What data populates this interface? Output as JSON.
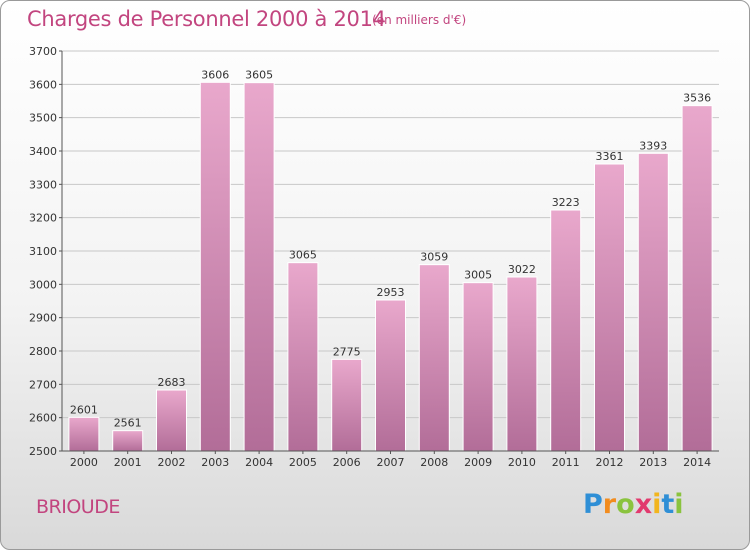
{
  "header": {
    "title": "Charges de Personnel 2000 à 2014",
    "subtitle": "(en milliers d'€)"
  },
  "footer": {
    "town": "BRIOUDE",
    "logo": {
      "letters": [
        "P",
        "r",
        "o",
        "x",
        "i",
        "t",
        "i"
      ],
      "colors": [
        "#2f8fd6",
        "#f28c1e",
        "#8ac33e",
        "#e23a6e",
        "#f2b51e",
        "#2f8fd6",
        "#8ac33e"
      ]
    }
  },
  "colors": {
    "bar_top": "#e9a8cc",
    "bar_bottom": "#b26d98",
    "axis": "#555555",
    "grid": "#c8c8c8"
  },
  "chart_data": {
    "type": "bar",
    "categories": [
      "2000",
      "2001",
      "2002",
      "2003",
      "2004",
      "2005",
      "2006",
      "2007",
      "2008",
      "2009",
      "2010",
      "2011",
      "2012",
      "2013",
      "2014"
    ],
    "values": [
      2601,
      2561,
      2683,
      3606,
      3605,
      3065,
      2775,
      2953,
      3059,
      3005,
      3022,
      3223,
      3361,
      3393,
      3536
    ],
    "ylim": [
      2500,
      3700
    ],
    "yticks": [
      2500,
      2600,
      2700,
      2800,
      2900,
      3000,
      3100,
      3200,
      3300,
      3400,
      3500,
      3600,
      3700
    ],
    "grid": true,
    "data_labels": true
  }
}
